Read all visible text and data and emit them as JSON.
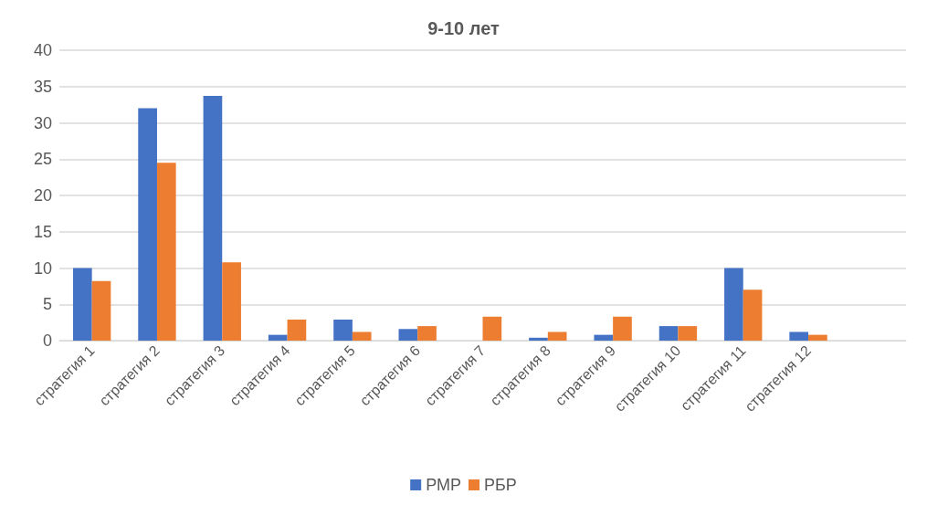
{
  "chart_data": {
    "type": "bar",
    "title": "9-10 лет",
    "categories": [
      "стратегия 1",
      "стратегия 2",
      "стратегия 3",
      "стратегия 4",
      "стратегия 5",
      "стратегия 6",
      "стратегия 7",
      "стратегия 8",
      "стратегия 9",
      "стратегия 10",
      "стратегия 11",
      "стратегия 12",
      null
    ],
    "series": [
      {
        "name": "РМР",
        "color": "#4472c4",
        "values": [
          10,
          32,
          33.7,
          0.8,
          2.9,
          1.6,
          0,
          0.4,
          0.8,
          2,
          10,
          1.2,
          null
        ]
      },
      {
        "name": "РБР",
        "color": "#ed7d31",
        "values": [
          8.2,
          24.5,
          10.8,
          2.9,
          1.2,
          2,
          3.3,
          1.2,
          3.3,
          2,
          7,
          0.8,
          null
        ]
      }
    ],
    "ylim": [
      0,
      40
    ],
    "yticks": [
      0,
      5,
      10,
      15,
      20,
      25,
      30,
      35,
      40
    ],
    "grid": "y",
    "legend": "bottom"
  }
}
